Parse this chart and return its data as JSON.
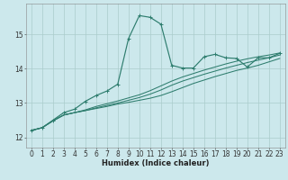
{
  "xlabel": "Humidex (Indice chaleur)",
  "background_color": "#cce8ec",
  "grid_color": "#aacccc",
  "line_color": "#2e7d6e",
  "xlim": [
    -0.5,
    23.5
  ],
  "ylim": [
    11.7,
    15.9
  ],
  "yticks": [
    12,
    13,
    14,
    15
  ],
  "xticks": [
    0,
    1,
    2,
    3,
    4,
    5,
    6,
    7,
    8,
    9,
    10,
    11,
    12,
    13,
    14,
    15,
    16,
    17,
    18,
    19,
    20,
    21,
    22,
    23
  ],
  "series_smooth": [
    [
      12.2,
      12.28,
      12.48,
      12.65,
      12.72,
      12.78,
      12.84,
      12.9,
      12.97,
      13.02,
      13.08,
      13.14,
      13.22,
      13.33,
      13.45,
      13.57,
      13.67,
      13.77,
      13.86,
      13.95,
      14.02,
      14.1,
      14.2,
      14.3
    ],
    [
      12.2,
      12.28,
      12.48,
      12.65,
      12.72,
      12.78,
      12.86,
      12.93,
      13.0,
      13.08,
      13.16,
      13.26,
      13.38,
      13.52,
      13.64,
      13.74,
      13.84,
      13.93,
      14.02,
      14.1,
      14.18,
      14.25,
      14.32,
      14.4
    ],
    [
      12.2,
      12.28,
      12.48,
      12.65,
      12.72,
      12.8,
      12.9,
      12.98,
      13.06,
      13.15,
      13.24,
      13.36,
      13.5,
      13.64,
      13.76,
      13.86,
      13.96,
      14.05,
      14.14,
      14.22,
      14.29,
      14.35,
      14.4,
      14.46
    ]
  ],
  "series_spike": [
    12.2,
    12.28,
    12.5,
    12.72,
    12.82,
    13.05,
    13.22,
    13.35,
    13.55,
    14.88,
    15.55,
    15.5,
    15.3,
    14.1,
    14.02,
    14.02,
    14.35,
    14.42,
    14.32,
    14.3,
    14.05,
    14.32,
    14.32,
    14.45
  ],
  "xlabel_fontsize": 6.0,
  "tick_fontsize": 5.5
}
